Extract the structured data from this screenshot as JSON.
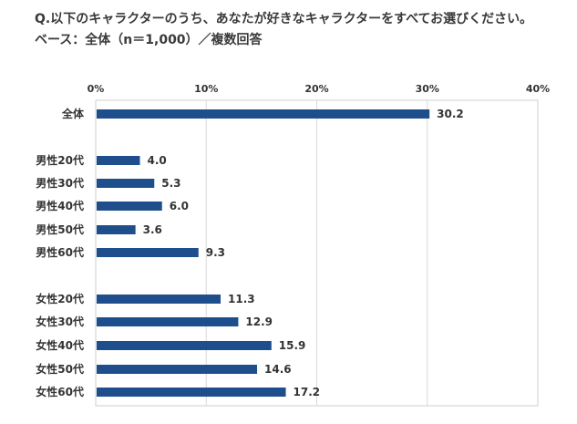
{
  "header": {
    "title": "Q.以下のキャラクターのうち、あなたが好きなキャラクターをすべてお選びください。",
    "subtitle": "ベース：全体（n＝1,000）／複数回答"
  },
  "chart_data": {
    "type": "bar",
    "orientation": "horizontal",
    "title": "Q.以下のキャラクターのうち、あなたが好きなキャラクターをすべてお選びください。",
    "subtitle": "ベース：全体（n＝1,000）／複数回答",
    "categories": [
      "全体",
      "男性20代",
      "男性30代",
      "男性40代",
      "男性50代",
      "男性60代",
      "女性20代",
      "女性30代",
      "女性40代",
      "女性50代",
      "女性60代"
    ],
    "values": [
      30.2,
      4.0,
      5.3,
      6.0,
      3.6,
      9.3,
      11.3,
      12.9,
      15.9,
      14.6,
      17.2
    ],
    "value_labels": [
      "30.2",
      "4.0",
      "5.3",
      "6.0",
      "3.6",
      "9.3",
      "11.3",
      "12.9",
      "15.9",
      "14.6",
      "17.2"
    ],
    "xlim": [
      0,
      40
    ],
    "xticks": [
      "0%",
      "10%",
      "20%",
      "30%",
      "40%"
    ],
    "xlabel": "",
    "ylabel": "",
    "bar_color": "#1f4e8c",
    "grid": true
  }
}
